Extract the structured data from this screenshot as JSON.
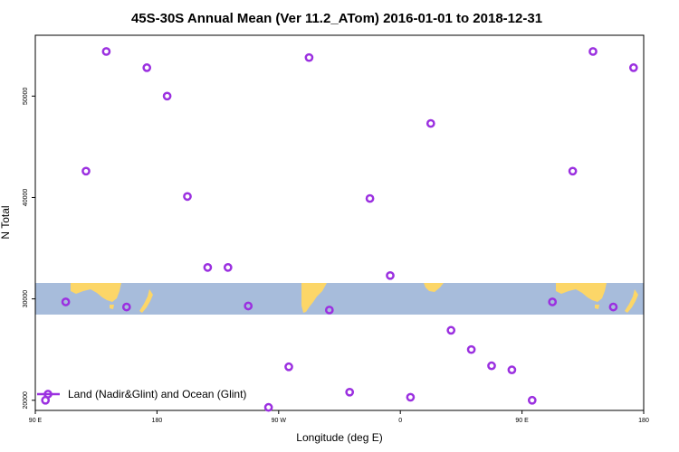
{
  "chart_data": {
    "type": "scatter",
    "title": "45S-30S Annual Mean (Ver 11.2_ATom)   2016-01-01 to 2018-12-31",
    "xlabel": "Longitude (deg E)",
    "ylabel": "N Total",
    "x_ticks": [
      {
        "value": 90,
        "label": "90 E"
      },
      {
        "value": 180,
        "label": "180"
      },
      {
        "value": 270,
        "label": "90 W"
      },
      {
        "value": 360,
        "label": "0"
      },
      {
        "value": 450,
        "label": "90 E"
      },
      {
        "value": 540,
        "label": "180"
      }
    ],
    "y_ticks": [
      {
        "value": 20000,
        "label": "20000"
      },
      {
        "value": 30000,
        "label": "30000"
      },
      {
        "value": 40000,
        "label": "40000"
      },
      {
        "value": 50000,
        "label": "50000"
      }
    ],
    "xlim": [
      90,
      540
    ],
    "ylim": [
      19000,
      56000
    ],
    "grid": false,
    "legend_position": "bottom-left",
    "series": [
      {
        "name": "Land (Nadir&Glint) and Ocean (Glint)",
        "color": "#9b30e0",
        "marker": "open-circle",
        "x": [
          97.5,
          112.5,
          127.5,
          142.5,
          157.5,
          172.5,
          187.5,
          202.5,
          217.5,
          232.5,
          247.5,
          262.5,
          277.5,
          292.5,
          307.5,
          322.5,
          337.5,
          352.5,
          367.5,
          382.5,
          397.5,
          412.5,
          427.5,
          442.5,
          457.5,
          472.5,
          487.5,
          502.5,
          517.5,
          532.5
        ],
        "y": [
          20000,
          29700,
          42600,
          54400,
          29200,
          52800,
          50000,
          40100,
          33100,
          33100,
          29300,
          19300,
          23300,
          53800,
          28900,
          20800,
          39900,
          32300,
          20300,
          47300,
          26900,
          25000,
          23400,
          23000,
          20000,
          29700,
          42600,
          54400,
          29200,
          52800
        ]
      }
    ]
  }
}
